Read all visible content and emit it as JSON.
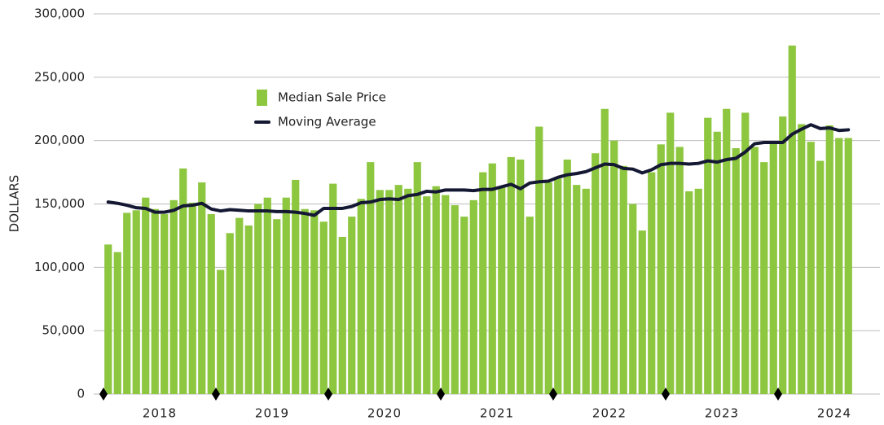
{
  "chart_data": {
    "type": "bar_line",
    "y_label": "DOLLARS",
    "categories": [
      null,
      null,
      null,
      null,
      null,
      null,
      null,
      null,
      null,
      null,
      null,
      null,
      null,
      null,
      null,
      null,
      null,
      null,
      null,
      null,
      null,
      null,
      null,
      null,
      null,
      null,
      null,
      null,
      null,
      null,
      null,
      null,
      null,
      null,
      null,
      null,
      null,
      null,
      null,
      null,
      null,
      null,
      null,
      null,
      null,
      null,
      null,
      null,
      null,
      null,
      null,
      null,
      null,
      null,
      null,
      null,
      null,
      null,
      null,
      null,
      null,
      null,
      null,
      null,
      null,
      null,
      null,
      null,
      null,
      null,
      null,
      null,
      null,
      null,
      null,
      null,
      null,
      null,
      null,
      null
    ],
    "x_groups": [
      "2018",
      "2019",
      "2020",
      "2021",
      "2022",
      "2023",
      "2024"
    ],
    "series": [
      {
        "name": "Median Sale Price",
        "kind": "bar",
        "color": "#8dc63f",
        "values": [
          118000,
          112000,
          143000,
          145000,
          155000,
          146000,
          142000,
          153000,
          178000,
          151000,
          167000,
          142000,
          98000,
          127000,
          139000,
          133000,
          150000,
          155000,
          138000,
          155000,
          169000,
          146000,
          145000,
          136000,
          166000,
          124000,
          140000,
          154000,
          183000,
          161000,
          161000,
          165000,
          162000,
          183000,
          156000,
          164000,
          157000,
          149000,
          140000,
          153000,
          175000,
          182000,
          163000,
          187000,
          185000,
          140000,
          211000,
          167000,
          170000,
          185000,
          165000,
          162000,
          190000,
          225000,
          200000,
          180000,
          150000,
          129000,
          175000,
          197000,
          222000,
          195000,
          160000,
          162000,
          218000,
          207000,
          225000,
          194000,
          222000,
          195000,
          183000,
          198000,
          219000,
          275000,
          213000,
          199000,
          184000,
          212000,
          202000,
          202000
        ]
      },
      {
        "name": "Moving Average",
        "kind": "line",
        "color": "#141833",
        "values": [
          151500,
          150500,
          149000,
          147000,
          146500,
          143500,
          143500,
          145000,
          148500,
          149000,
          150500,
          146000,
          144500,
          145500,
          145000,
          144500,
          144500,
          144500,
          144000,
          144000,
          143500,
          142500,
          141000,
          146500,
          146500,
          146500,
          148000,
          151000,
          151500,
          153500,
          154000,
          153500,
          156500,
          157500,
          160000,
          159500,
          161000,
          161000,
          161000,
          160500,
          161500,
          161500,
          163500,
          165500,
          162000,
          166500,
          167500,
          168000,
          171000,
          173000,
          174000,
          175500,
          178500,
          181500,
          181000,
          178000,
          177500,
          174500,
          177000,
          181000,
          182000,
          182000,
          181500,
          182000,
          184000,
          183000,
          185000,
          186000,
          191000,
          197500,
          198500,
          198500,
          198500,
          205000,
          209000,
          212500,
          209500,
          210000,
          208000,
          208500
        ]
      }
    ],
    "ylim": [
      0,
      300000
    ],
    "yticks": [
      0,
      {
        "value": 50000,
        "label": "50,000"
      },
      {
        "value": 100000,
        "label": "100,000"
      },
      {
        "value": 150000,
        "label": "150,000"
      },
      {
        "value": 200000,
        "label": "200,000"
      },
      {
        "value": 250000,
        "label": "250,000"
      },
      {
        "value": 300000,
        "label": "300,000"
      }
    ],
    "grid": true
  }
}
